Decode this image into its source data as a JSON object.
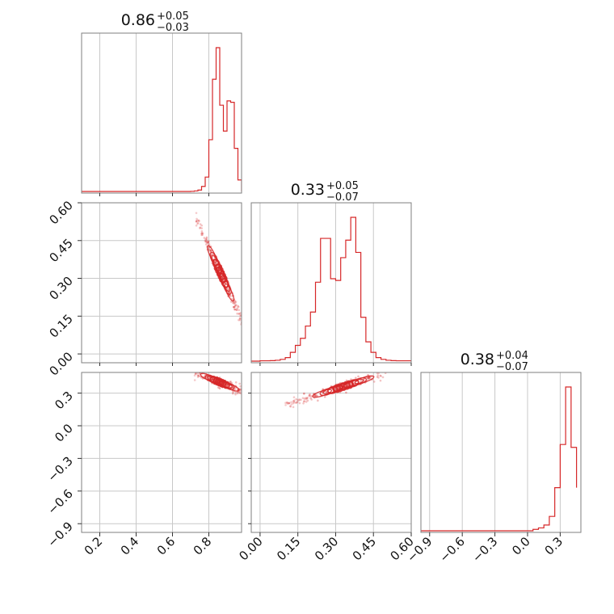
{
  "chart_data": {
    "type": "corner",
    "color": "#d62728",
    "grid": true,
    "parameters": [
      {
        "id": "p0",
        "range": [
          0.1,
          0.98
        ],
        "ticks": [
          0.2,
          0.4,
          0.6,
          0.8
        ],
        "tick_labels": [
          "0.2",
          "0.4",
          "0.6",
          "0.8"
        ]
      },
      {
        "id": "p1",
        "range": [
          -0.035,
          0.6
        ],
        "ticks": [
          0.0,
          0.15,
          0.3,
          0.45,
          0.6
        ],
        "tick_labels": [
          "0.00",
          "0.15",
          "0.30",
          "0.45",
          "0.60"
        ]
      },
      {
        "id": "p2",
        "range": [
          -0.98,
          0.49
        ],
        "ticks": [
          -0.9,
          -0.6,
          -0.3,
          0.0,
          0.3
        ],
        "tick_labels": [
          "−0.9",
          "−0.6",
          "−0.3",
          "0.0",
          "0.3"
        ]
      }
    ],
    "titles": [
      {
        "value": "0.86",
        "plus": "+0.05",
        "minus": "−0.03"
      },
      {
        "value": "0.33",
        "plus": "+0.05",
        "minus": "−0.07"
      },
      {
        "value": "0.38",
        "plus": "+0.04",
        "minus": "−0.07"
      }
    ],
    "histograms": [
      {
        "param": 0,
        "edges": [
          0.7,
          0.72,
          0.74,
          0.76,
          0.78,
          0.8,
          0.82,
          0.84,
          0.86,
          0.88,
          0.9,
          0.92,
          0.94,
          0.96,
          0.98
        ],
        "counts": [
          0.1,
          0.4,
          1.0,
          3.5,
          10,
          36,
          78,
          100,
          60,
          42,
          63,
          62,
          30,
          8
        ]
      },
      {
        "param": 1,
        "edges": [
          0.0,
          0.02,
          0.04,
          0.06,
          0.08,
          0.1,
          0.12,
          0.14,
          0.16,
          0.18,
          0.2,
          0.22,
          0.24,
          0.26,
          0.28,
          0.3,
          0.32,
          0.34,
          0.36,
          0.38,
          0.4,
          0.42,
          0.44,
          0.46,
          0.48,
          0.5,
          0.52,
          0.54,
          0.56,
          0.58,
          0.6
        ],
        "counts": [
          0.2,
          0.2,
          0.3,
          0.5,
          1,
          2,
          5,
          9,
          13,
          20,
          28,
          45,
          70,
          70,
          47,
          46,
          59,
          69,
          82,
          62,
          25,
          11,
          5,
          2,
          1,
          0.5,
          0.3,
          0.2,
          0.2,
          0.2
        ]
      },
      {
        "param": 2,
        "edges": [
          -0.9,
          -0.85,
          -0.8,
          -0.75,
          -0.7,
          -0.65,
          -0.6,
          -0.55,
          -0.5,
          -0.45,
          -0.4,
          -0.35,
          -0.3,
          -0.25,
          -0.2,
          -0.15,
          -0.1,
          -0.05,
          0.0,
          0.05,
          0.1,
          0.15,
          0.2,
          0.25,
          0.3,
          0.35,
          0.4,
          0.45
        ],
        "counts": [
          0,
          0,
          0,
          0,
          0,
          0,
          0,
          0,
          0,
          0,
          0,
          0,
          0,
          0,
          0,
          0,
          0,
          0,
          0,
          1,
          2,
          4,
          10,
          30,
          60,
          100,
          58,
          30
        ]
      }
    ],
    "pairs": [
      {
        "x": 0,
        "y": 1,
        "center": [
          0.865,
          0.32
        ],
        "slope": -1.58,
        "extent": [
          0.83,
          0.95
        ],
        "width": 0.012,
        "scatter_extent": [
          0.73,
          0.99
        ]
      },
      {
        "x": 0,
        "y": 2,
        "center": [
          0.86,
          0.4
        ],
        "slope": -0.7,
        "extent": [
          0.78,
          0.96
        ],
        "width": 0.02,
        "scatter_extent": [
          0.72,
          0.99
        ]
      },
      {
        "x": 1,
        "y": 2,
        "center": [
          0.33,
          0.36
        ],
        "slope": 0.75,
        "extent": [
          0.22,
          0.43
        ],
        "width": 0.02,
        "scatter_extent": [
          0.1,
          0.5
        ]
      }
    ]
  }
}
